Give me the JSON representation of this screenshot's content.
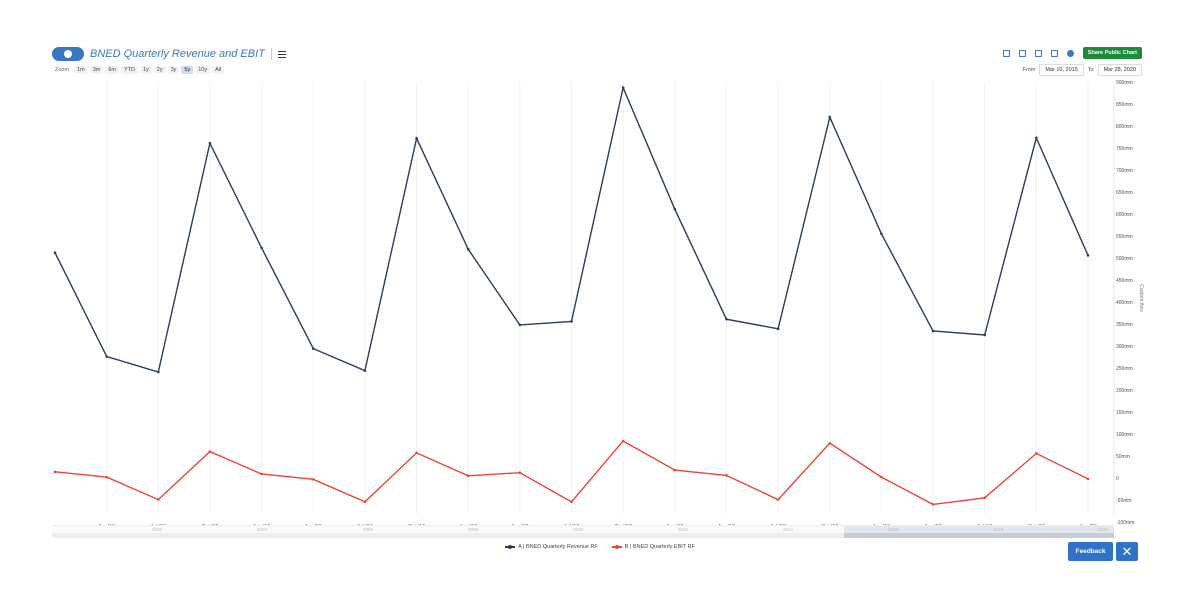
{
  "header": {
    "title": "BNED Quarterly Revenue and EBIT",
    "zoom_label": "Zoom",
    "zoom_options": [
      "1m",
      "3m",
      "6m",
      "YTD",
      "1y",
      "2y",
      "3y",
      "5y",
      "10y",
      "All"
    ],
    "zoom_active": "5y",
    "share_label": "Share Public Chart",
    "from_label": "From",
    "from_date": "Mar 10, 2015",
    "to_label": "To",
    "to_date": "Mar 28, 2020"
  },
  "navigator": {
    "years": [
      "2002",
      "2004",
      "2006",
      "2008",
      "2010",
      "2012",
      "2014",
      "2016",
      "2018",
      "2020"
    ]
  },
  "buttons": {
    "feedback": "Feedback",
    "close": "✕"
  },
  "chart_data": {
    "type": "line",
    "x_tick_labels": [
      "Apr '15",
      "Jul '15",
      "Oct '15",
      "Jan '16",
      "Apr '16",
      "Jul '16",
      "Oct '16",
      "Jan '17",
      "Apr '17",
      "Jul '17",
      "Oct '17",
      "Jan '18",
      "Apr '18",
      "Jul '18",
      "Oct '18",
      "Jan '19",
      "Apr '19",
      "Jul '19",
      "Oct '19",
      "Jan '20"
    ],
    "y_tick_labels": [
      "-100mm",
      "-50mm",
      "0",
      "50mm",
      "100mm",
      "150mm",
      "200mm",
      "250mm",
      "300mm",
      "350mm",
      "400mm",
      "450mm",
      "500mm",
      "550mm",
      "600mm",
      "650mm",
      "700mm",
      "750mm",
      "800mm",
      "850mm",
      "900mm"
    ],
    "ylabel": "Custom Axis",
    "ylim": [
      -100,
      900
    ],
    "x": [
      "Jan '15",
      "Apr '15",
      "Jul '15",
      "Oct '15",
      "Jan '16",
      "Apr '16",
      "Jul '16",
      "Oct '16",
      "Jan '17",
      "Apr '17",
      "Jul '17",
      "Oct '17",
      "Jan '18",
      "Apr '18",
      "Jul '18",
      "Oct '18",
      "Jan '19",
      "Apr '19",
      "Jul '19",
      "Oct '19",
      "Jan '20"
    ],
    "series": [
      {
        "name": "A | BNED Quarterly Revenue RF",
        "color": "#2d3e55",
        "values": [
          512,
          276,
          241,
          761,
          523,
          294,
          244,
          772,
          520,
          348,
          356,
          887,
          611,
          361,
          339,
          820,
          555,
          334,
          325,
          773,
          506
        ]
      },
      {
        "name": "B | BNED Quarterly EBIT RF",
        "color": "#e8453c",
        "values": [
          14,
          2,
          -49,
          60,
          9,
          -3,
          -54,
          57,
          5,
          12,
          -54,
          84,
          18,
          6,
          -49,
          79,
          2,
          -60,
          -45,
          56,
          -2
        ]
      }
    ]
  }
}
